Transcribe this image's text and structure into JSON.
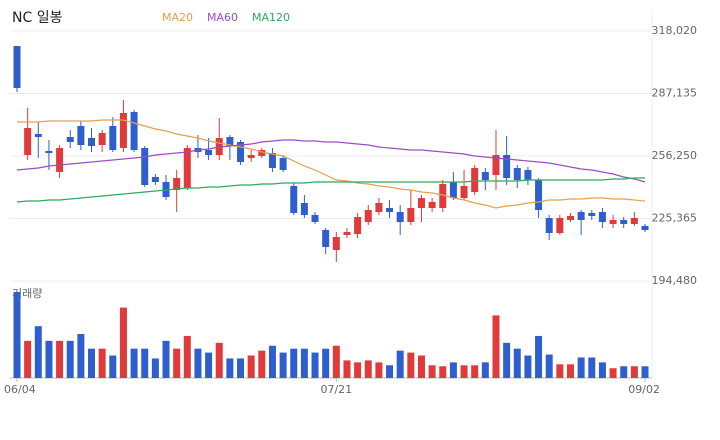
{
  "chart_data": {
    "type": "candlestick",
    "title": "NC 일봉",
    "categories": [
      "06/04",
      null,
      null,
      null,
      null,
      null,
      null,
      null,
      null,
      null,
      null,
      null,
      null,
      null,
      null,
      null,
      null,
      null,
      null,
      null,
      null,
      null,
      null,
      null,
      null,
      null,
      null,
      null,
      null,
      null,
      "07/21",
      null,
      null,
      null,
      null,
      null,
      null,
      null,
      null,
      null,
      null,
      null,
      null,
      null,
      null,
      null,
      null,
      null,
      null,
      null,
      null,
      null,
      null,
      null,
      null,
      null,
      null,
      null,
      null,
      "09/02"
    ],
    "open": [
      310600,
      256740,
      267120,
      258720,
      248340,
      265630,
      271070,
      265130,
      261680,
      271070,
      260200,
      277990,
      260200,
      245870,
      243390,
      239440,
      240430,
      260200,
      259210,
      256740,
      265630,
      263160,
      255250,
      256240,
      257730,
      255250,
      241420,
      233020,
      227090,
      219670,
      209790,
      217200,
      217700,
      223630,
      228570,
      230550,
      228570,
      223630,
      230550,
      230550,
      230550,
      243390,
      235480,
      238450,
      248340,
      246850,
      256740,
      250310,
      249330,
      244380,
      225610,
      218190,
      224620,
      228570,
      228080,
      228570,
      222640,
      224620,
      222640,
      221650
    ],
    "high": [
      310600,
      279970,
      273050,
      264150,
      261680,
      269090,
      273540,
      270080,
      269090,
      275520,
      283920,
      278970,
      261190,
      247350,
      246850,
      249330,
      261680,
      266620,
      265130,
      275030,
      266620,
      264150,
      259210,
      260200,
      260200,
      256740,
      242900,
      236970,
      228570,
      220660,
      218680,
      220660,
      228080,
      232030,
      235480,
      234500,
      232030,
      239440,
      236970,
      235480,
      244380,
      248340,
      249330,
      251800,
      250310,
      269090,
      266130,
      251800,
      250810,
      245370,
      227090,
      227090,
      228080,
      229560,
      229560,
      230550,
      227090,
      226100,
      228570,
      222640
    ],
    "low": [
      287870,
      254270,
      255250,
      249330,
      245370,
      260200,
      259210,
      258220,
      258220,
      258220,
      258220,
      258220,
      240930,
      241910,
      234500,
      228570,
      239440,
      255250,
      254270,
      254270,
      254270,
      251800,
      253280,
      255250,
      248340,
      248340,
      227090,
      225610,
      222640,
      207810,
      203860,
      215720,
      215720,
      222140,
      227090,
      225610,
      217200,
      222140,
      223630,
      228570,
      228570,
      234500,
      234500,
      236970,
      239440,
      239440,
      241910,
      240430,
      241910,
      225610,
      214730,
      217200,
      223630,
      217200,
      224620,
      220660,
      220660,
      220660,
      221650,
      218680
    ],
    "close": [
      289850,
      270080,
      265630,
      257730,
      260200,
      263160,
      261680,
      261190,
      267610,
      259210,
      277490,
      259210,
      241910,
      243390,
      235980,
      245370,
      260200,
      258220,
      256740,
      265130,
      261190,
      253280,
      256740,
      259210,
      250310,
      249330,
      228080,
      227090,
      223630,
      211270,
      216210,
      218680,
      226100,
      229560,
      233020,
      228570,
      223630,
      230550,
      235480,
      233520,
      242400,
      235480,
      241420,
      250310,
      244380,
      256740,
      245370,
      244380,
      244380,
      229560,
      218190,
      225610,
      226600,
      224620,
      226600,
      223630,
      224620,
      222640,
      225610,
      219670
    ],
    "up_color": "#e03a3a",
    "down_color": "#2f5fcf",
    "series": [
      {
        "name": "MA20",
        "color": "#e3a04f",
        "values": [
          273050,
          273050,
          273050,
          273540,
          273540,
          273540,
          273540,
          273540,
          274040,
          274040,
          274040,
          272550,
          271070,
          269590,
          268600,
          267120,
          266130,
          265140,
          263660,
          262670,
          261680,
          260690,
          259700,
          258220,
          257230,
          256250,
          253770,
          251300,
          249330,
          246860,
          244380,
          243890,
          242900,
          242410,
          241420,
          240930,
          239940,
          239440,
          238450,
          237960,
          236970,
          235490,
          234500,
          233020,
          232030,
          230550,
          231540,
          232030,
          233020,
          233510,
          234500,
          234500,
          234990,
          234990,
          235490,
          235490,
          234990,
          234990,
          234500,
          234010
        ]
      },
      {
        "name": "MA60",
        "color": "#9b4fbd",
        "values": [
          249330,
          249820,
          250320,
          251300,
          251800,
          252290,
          252790,
          253280,
          253770,
          254270,
          254760,
          255260,
          255750,
          256740,
          257230,
          257730,
          258220,
          259210,
          259700,
          260690,
          261190,
          261680,
          262180,
          263160,
          263660,
          264150,
          264150,
          263660,
          263660,
          263160,
          263160,
          262670,
          262180,
          261680,
          260690,
          260200,
          259700,
          259210,
          259210,
          258720,
          258220,
          257730,
          257230,
          256250,
          255750,
          255260,
          254760,
          254270,
          253770,
          253280,
          252790,
          251800,
          250810,
          249820,
          249330,
          248340,
          247350,
          245870,
          244880,
          243400
        ]
      },
      {
        "name": "MA120",
        "color": "#2fa862",
        "values": [
          233510,
          234010,
          234010,
          234500,
          234500,
          234990,
          235490,
          235980,
          236480,
          236970,
          237470,
          237960,
          238450,
          238950,
          239440,
          239940,
          240430,
          240430,
          240930,
          240930,
          241420,
          241910,
          241910,
          242410,
          242410,
          242900,
          242900,
          242900,
          243400,
          243400,
          243400,
          243400,
          243400,
          243400,
          243400,
          243400,
          243400,
          243400,
          243400,
          243400,
          243400,
          243400,
          243400,
          243890,
          243890,
          243890,
          243890,
          243890,
          244380,
          244380,
          244380,
          244380,
          244380,
          244380,
          244380,
          244380,
          244880,
          244880,
          245370,
          245370
        ]
      }
    ],
    "ylim": [
      190020,
      328400
    ],
    "yticks": [
      {
        "value": 194480,
        "label": "194,480"
      },
      {
        "value": 225365,
        "label": "225,365"
      },
      {
        "value": 256250,
        "label": "256,250"
      },
      {
        "value": 287135,
        "label": "287,135"
      },
      {
        "value": 318020,
        "label": "318,020"
      }
    ],
    "grid": true,
    "volume": {
      "label": "거래량",
      "ylim": [
        0,
        90
      ],
      "values": [
        88,
        38,
        53,
        38,
        38,
        38,
        45,
        30,
        30,
        23,
        72,
        30,
        30,
        20,
        38,
        30,
        43,
        30,
        26,
        36,
        20,
        20,
        23,
        28,
        33,
        26,
        30,
        30,
        26,
        30,
        33,
        18,
        16,
        18,
        16,
        13,
        28,
        26,
        23,
        13,
        12,
        16,
        13,
        13,
        16,
        64,
        36,
        30,
        23,
        43,
        24,
        14,
        14,
        21,
        21,
        16,
        10,
        12,
        12,
        12
      ]
    }
  }
}
